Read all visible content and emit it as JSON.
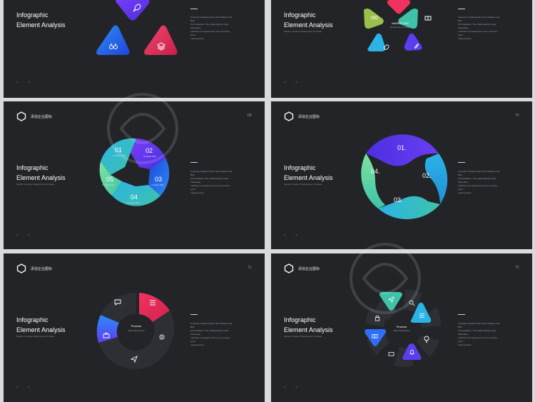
{
  "slides": [
    {
      "title": "Infographic\nElement Analysis",
      "subtitle": "",
      "nav": "‹ ›",
      "body": "Uniquely incubate/manly informediaries and B2C\ninformediaries. The collaboratively scale frictionless\nmethods of empowerment vis-a-vis future-proof\nmeta-services.",
      "header": "",
      "page": ""
    },
    {
      "title": "Infographic\nElement Analysis",
      "subtitle": "Modern Creative Multipurpose Template",
      "nav": "‹ ›",
      "center_title": "MARKETING",
      "center_sub": "Dynamical top design",
      "body": "Uniquely incubate/manly informediaries and B2C\ninformediaries. The collaboratively scale frictionless\nmethods of empowerment vis-a-vis future-proof\nmeta-services.",
      "header": "",
      "page": ""
    },
    {
      "title": "Infographic\nElement Analysis",
      "subtitle": "Modern Creative Multipurpose Template",
      "nav": "‹ ›",
      "header": "添加企业图标",
      "page": "69",
      "segments": [
        {
          "num": "01",
          "label": "Creative Plan"
        },
        {
          "num": "02",
          "label": "Creative Plan"
        },
        {
          "num": "03",
          "label": "Creative Plan"
        },
        {
          "num": "04",
          "label": "Creative Plan"
        },
        {
          "num": "05",
          "label": "Creative Plan"
        }
      ],
      "body": "Uniquely incubate/manly informediaries and B2C\ninformediaries. The collaboratively scale frictionless\nmethods of empowerment vis-a-vis future-proof\nmeta-services."
    },
    {
      "title": "Infographic\nElement Analysis",
      "subtitle": "Modern Creative Multipurpose Template",
      "nav": "‹ ›",
      "header": "添加企业图标",
      "page": "70",
      "segments": [
        "01.",
        "02.",
        "03.",
        "04."
      ],
      "body": "Uniquely incubate/manly informediaries and B2C\ninformediaries. The collaboratively scale frictionless\nmethods of empowerment vis-a-vis future-proof\nmeta-services."
    },
    {
      "title": "Infographic\nElement Analysis",
      "subtitle": "Modern Creative Multipurpose Template",
      "nav": "‹ ›",
      "header": "添加企业图标",
      "page": "71",
      "center_title": "Process",
      "center_sub": "Main Department",
      "body": "Uniquely incubate/manly informediaries and B2C\ninformediaries. The collaboratively scale frictionless\nmethods of empowerment vis-a-vis future-proof\nmeta-services."
    },
    {
      "title": "Infographic\nElement Analysis",
      "subtitle": "Modern Creative Multipurpose Template",
      "nav": "‹ ›",
      "header": "添加企业图标",
      "page": "72",
      "center_title": "Process",
      "center_sub": "Main Department",
      "body": "Uniquely incubate/manly informediaries and B2C\ninformediaries. The collaboratively scale frictionless\nmethods of empowerment vis-a-vis future-proof\nmeta-services."
    }
  ],
  "colors": {
    "bg": "#232428",
    "purple": "#5b3ef0",
    "blue": "#2f6ff5",
    "cyan": "#2bb3e6",
    "teal": "#3ec3a9",
    "green": "#7fe3a0",
    "pink": "#f0335e",
    "olive": "#9bbf4a",
    "dark_seg": "#2e2f35"
  },
  "icons": [
    "rocket-icon",
    "binoculars-icon",
    "layers-icon",
    "gift-icon",
    "clip-icon",
    "chat-icon",
    "sliders-icon",
    "gear-icon",
    "send-icon",
    "lock-icon",
    "search-icon",
    "bulb-icon",
    "bell-icon",
    "briefcase-icon"
  ]
}
